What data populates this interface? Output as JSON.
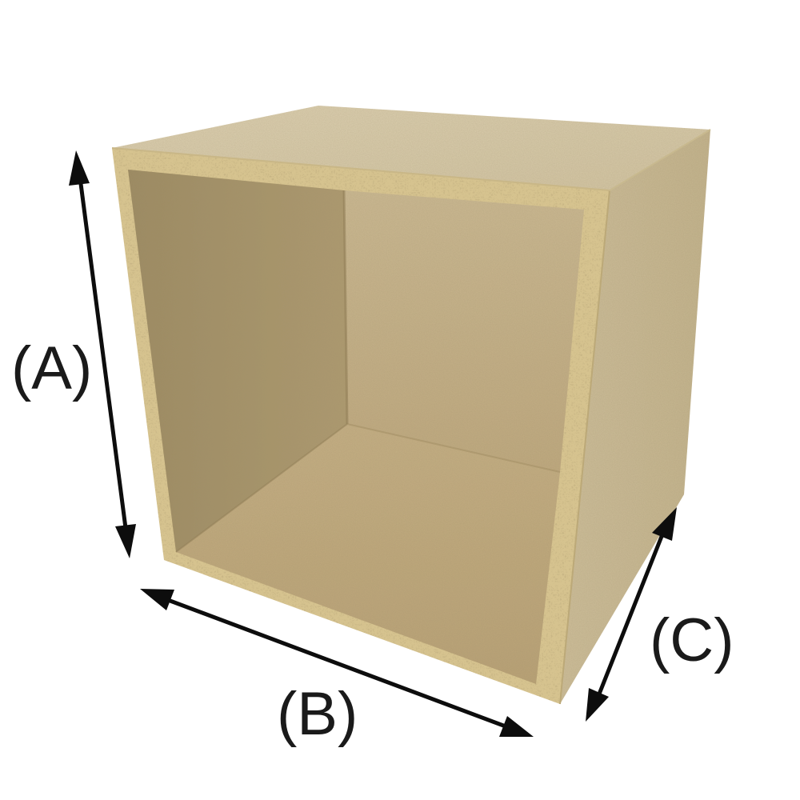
{
  "labels": {
    "a": "(A)",
    "b": "(B)",
    "c": "(C)"
  },
  "colors": {
    "background": "#ffffff",
    "arrow": "#0d0d0d",
    "label": "#1a1a1a",
    "board_top": "#d9ccab",
    "board_side": "#cdbe99",
    "board_edge": "#d8c592",
    "back_panel": "#c8b68e",
    "left_inner_panel": "#a8956c",
    "floor_panel": "#c4ae82"
  }
}
